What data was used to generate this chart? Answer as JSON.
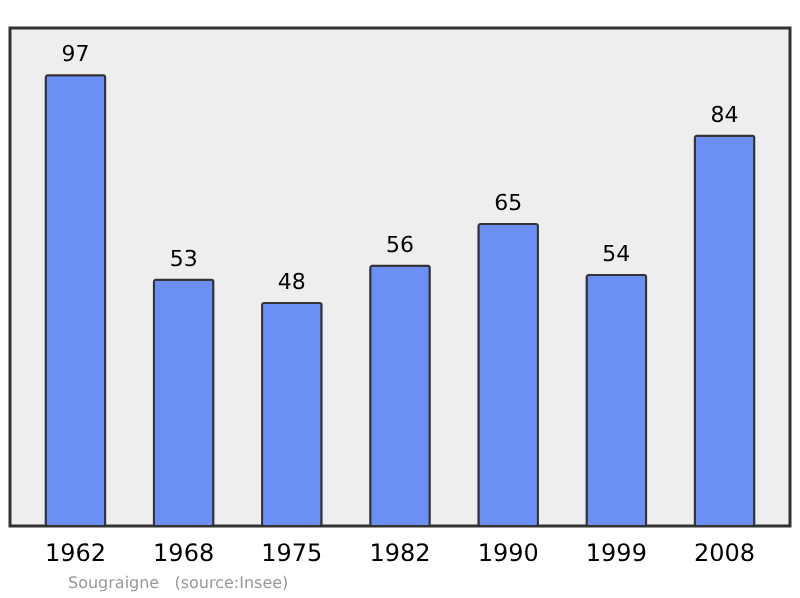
{
  "chart_data": {
    "type": "bar",
    "categories": [
      "1962",
      "1968",
      "1975",
      "1982",
      "1990",
      "1999",
      "2008"
    ],
    "values": [
      97,
      53,
      48,
      56,
      65,
      54,
      84
    ],
    "color": "#6b8ff5",
    "data_labels": true,
    "annotations": [
      "Sougraigne   (source:Insee)"
    ]
  }
}
